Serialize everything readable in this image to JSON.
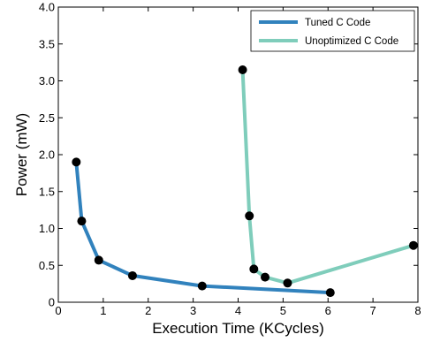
{
  "chart_data": {
    "type": "line",
    "title": "",
    "xlabel": "Execution Time (KCycles)",
    "ylabel": "Power (mW)",
    "xlim": [
      0,
      8
    ],
    "ylim": [
      0,
      4.0
    ],
    "x_ticks": [
      0,
      1,
      2,
      3,
      4,
      5,
      6,
      7,
      8
    ],
    "y_ticks": [
      "0",
      "0.5",
      "1.0",
      "1.5",
      "2.0",
      "2.5",
      "3.0",
      "3.5",
      "4.0"
    ],
    "grid": false,
    "legend_position": "top-right",
    "series": [
      {
        "name": "Tuned C Code",
        "color": "#3182bd",
        "marker_color": "#000000",
        "points": [
          {
            "x": 0.4,
            "y": 1.9
          },
          {
            "x": 0.52,
            "y": 1.1
          },
          {
            "x": 0.9,
            "y": 0.57
          },
          {
            "x": 1.65,
            "y": 0.36
          },
          {
            "x": 3.2,
            "y": 0.22
          },
          {
            "x": 6.05,
            "y": 0.13
          }
        ]
      },
      {
        "name": "Unoptimized C Code",
        "color": "#7fcdbb",
        "marker_color": "#000000",
        "points": [
          {
            "x": 4.1,
            "y": 3.15
          },
          {
            "x": 4.25,
            "y": 1.17
          },
          {
            "x": 4.35,
            "y": 0.45
          },
          {
            "x": 4.6,
            "y": 0.34
          },
          {
            "x": 5.1,
            "y": 0.26
          },
          {
            "x": 7.9,
            "y": 0.77
          }
        ]
      }
    ]
  }
}
